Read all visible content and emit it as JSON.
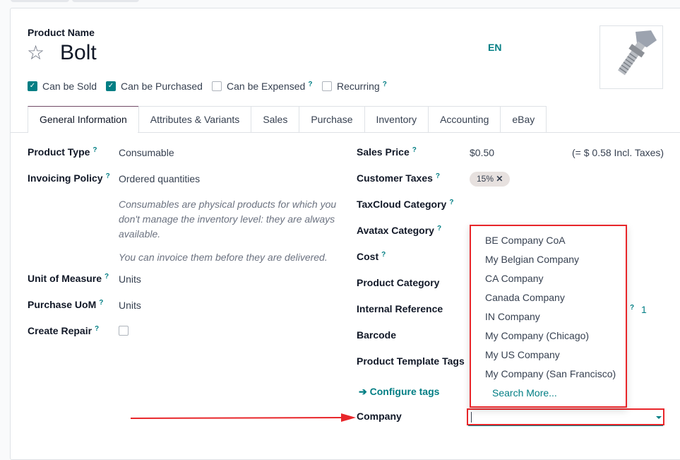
{
  "product": {
    "name_label": "Product Name",
    "name": "Bolt",
    "lang": "EN"
  },
  "flags": [
    {
      "label": "Can be Sold",
      "checked": true,
      "help": false
    },
    {
      "label": "Can be Purchased",
      "checked": true,
      "help": false
    },
    {
      "label": "Can be Expensed",
      "checked": false,
      "help": true
    },
    {
      "label": "Recurring",
      "checked": false,
      "help": true
    }
  ],
  "tabs": [
    "General Information",
    "Attributes & Variants",
    "Sales",
    "Purchase",
    "Inventory",
    "Accounting",
    "eBay"
  ],
  "help_mark": "?",
  "left": {
    "product_type": {
      "label": "Product Type",
      "value": "Consumable"
    },
    "invoicing_policy": {
      "label": "Invoicing Policy",
      "value": "Ordered quantities"
    },
    "note1": "Consumables are physical products for which you don't manage the inventory level: they are always available.",
    "note2": "You can invoice them before they are delivered.",
    "uom": {
      "label": "Unit of Measure",
      "value": "Units"
    },
    "purchase_uom": {
      "label": "Purchase UoM",
      "value": "Units"
    },
    "create_repair": {
      "label": "Create Repair",
      "checked": false
    }
  },
  "right": {
    "sales_price": {
      "label": "Sales Price",
      "value": "$0.50",
      "incl": "(= $ 0.58 Incl. Taxes)"
    },
    "customer_taxes": {
      "label": "Customer Taxes",
      "tag": "15%"
    },
    "taxcloud": {
      "label": "TaxCloud Category"
    },
    "avatax": {
      "label": "Avatax Category"
    },
    "cost": {
      "label": "Cost"
    },
    "product_category": {
      "label": "Product Category"
    },
    "internal_ref": {
      "label": "Internal Reference",
      "partial": "1"
    },
    "barcode": {
      "label": "Barcode"
    },
    "tags": {
      "label": "Product Template Tags"
    },
    "configure_tags": "Configure tags",
    "company": {
      "label": "Company",
      "value": ""
    }
  },
  "dropdown": {
    "options": [
      "BE Company CoA",
      "My Belgian Company",
      "CA Company",
      "Canada Company",
      "IN Company",
      "My Company (Chicago)",
      "My US Company",
      "My Company (San Francisco)"
    ],
    "search_more": "Search More..."
  },
  "colors": {
    "accent": "#017e84",
    "highlight": "#e8262a",
    "tab_active": "#714b67"
  }
}
